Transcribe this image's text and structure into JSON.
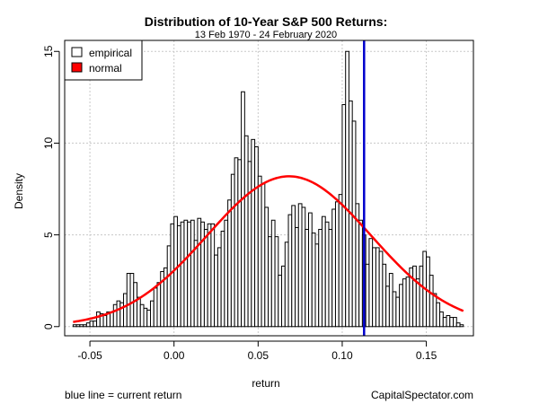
{
  "chart_data": {
    "type": "bar",
    "title": "Distribution of 10-Year S&P 500 Returns:",
    "subtitle": "13 Feb 1970 - 24 February 2020",
    "xlabel": "return",
    "ylabel": "Density",
    "xlim": [
      -0.065,
      0.178
    ],
    "ylim": [
      -0.5,
      15.6
    ],
    "xticks": [
      -0.05,
      0.0,
      0.05,
      0.1,
      0.15
    ],
    "xtick_labels": [
      "-0.05",
      "0.00",
      "0.05",
      "0.10",
      "0.15"
    ],
    "yticks": [
      0,
      5,
      10,
      15
    ],
    "ytick_labels": [
      "0",
      "5",
      "10",
      "15"
    ],
    "grid": true,
    "legend_position": "top-left",
    "legend": [
      {
        "label": "empirical",
        "color": "#ffffff"
      },
      {
        "label": "normal",
        "color": "#ff0000"
      }
    ],
    "histogram": {
      "name": "empirical",
      "bin_start": -0.06,
      "bin_width": 0.002,
      "densities": [
        0.1,
        0.1,
        0.1,
        0.1,
        0.2,
        0.3,
        0.3,
        0.8,
        0.7,
        0.6,
        0.8,
        0.8,
        1.2,
        1.4,
        1.3,
        1.8,
        2.9,
        2.9,
        2.4,
        1.6,
        1.2,
        1.0,
        0.9,
        1.4,
        2.1,
        2.4,
        3.0,
        3.2,
        4.4,
        5.6,
        6.0,
        5.5,
        5.7,
        5.8,
        5.7,
        5.8,
        4.7,
        5.9,
        5.7,
        5.3,
        5.6,
        5.6,
        3.9,
        4.3,
        5.2,
        5.8,
        6.9,
        8.3,
        9.2,
        9.1,
        12.8,
        10.4,
        9.0,
        10.2,
        9.8,
        8.2,
        7.8,
        6.5,
        4.9,
        5.8,
        4.9,
        2.8,
        3.3,
        4.6,
        6.1,
        6.6,
        5.4,
        6.7,
        6.5,
        5.3,
        6.2,
        5.1,
        4.5,
        5.3,
        6.0,
        5.7,
        5.3,
        6.4,
        6.8,
        7.2,
        12.1,
        15.0,
        12.3,
        11.2,
        6.7,
        5.8,
        5.0,
        3.4,
        4.8,
        4.3,
        4.3,
        4.1,
        3.4,
        2.2,
        2.9,
        1.9,
        1.6,
        2.3,
        2.6,
        2.7,
        3.2,
        3.3,
        2.6,
        3.3,
        4.1,
        3.8,
        2.8,
        1.8,
        1.3,
        0.8,
        0.5,
        0.6,
        0.5,
        0.5,
        0.2,
        0.1
      ]
    },
    "normal_curve": {
      "name": "normal",
      "color": "#ff0000",
      "mean": 0.0684,
      "sd": 0.0487
    },
    "current_return": {
      "value": 0.113,
      "color": "#0000cc"
    },
    "annotations": {
      "bottom_left": "blue line = current return",
      "bottom_right": "CapitalSpectator.com"
    }
  }
}
